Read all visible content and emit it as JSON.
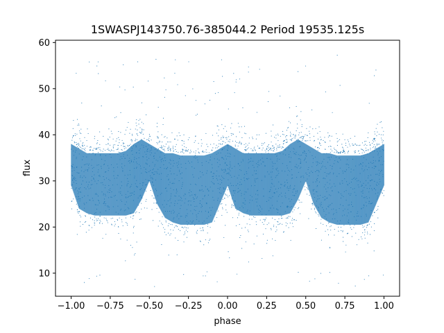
{
  "chart_data": {
    "type": "scatter",
    "title": "1SWASPJ143750.76-385044.2 Period 19535.125s",
    "xlabel": "phase",
    "ylabel": "flux",
    "xlim": [
      -1.1,
      1.1
    ],
    "ylim": [
      5,
      60.5
    ],
    "x_ticks": [
      -1.0,
      -0.75,
      -0.5,
      -0.25,
      0.0,
      0.25,
      0.5,
      0.75,
      1.0
    ],
    "x_tick_labels": [
      "−1.00",
      "−0.75",
      "−0.50",
      "−0.25",
      "0.00",
      "0.25",
      "0.50",
      "0.75",
      "1.00"
    ],
    "y_ticks": [
      10,
      20,
      30,
      40,
      50,
      60
    ],
    "y_tick_labels": [
      "10",
      "20",
      "30",
      "40",
      "50",
      "60"
    ],
    "grid": false,
    "legend": "none",
    "marker_color": "#1f77b4",
    "series": [
      {
        "x_range": [
          -1.0,
          1.0
        ],
        "profile": {
          "phase": [
            0.0,
            0.05,
            0.1,
            0.15,
            0.2,
            0.25,
            0.3,
            0.35,
            0.4,
            0.45,
            0.5,
            0.55,
            0.6,
            0.65,
            0.7,
            0.75,
            0.8,
            0.85,
            0.9,
            0.95,
            1.0
          ],
          "flux_low": [
            29,
            24,
            23,
            22.5,
            22.5,
            22.5,
            22.5,
            22.5,
            23,
            26,
            30,
            25,
            22,
            21,
            20.5,
            20.5,
            20.5,
            20.5,
            21,
            25,
            29
          ],
          "flux_high": [
            38,
            37,
            36,
            36,
            36,
            36,
            36,
            36.5,
            38,
            39,
            38,
            37,
            36,
            36,
            35.5,
            35.5,
            35.5,
            35.5,
            36,
            37,
            38
          ]
        },
        "outlier_range": [
          7,
          58
        ]
      }
    ]
  }
}
